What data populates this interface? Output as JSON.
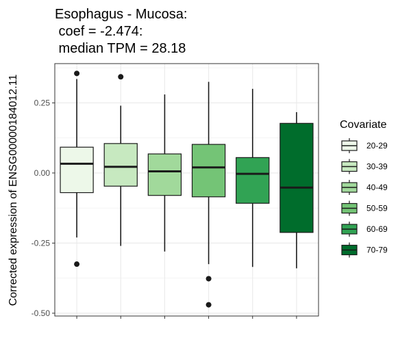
{
  "chart_data": {
    "type": "boxplot",
    "title_lines": [
      "Esophagus - Mucosa:",
      " coef = -2.474:",
      " median TPM = 28.18"
    ],
    "xlabel": "",
    "ylabel": "Corrected expression of ENSG00000184012.11",
    "ylim": [
      -0.51,
      0.39
    ],
    "yticks": [
      0.25,
      0.0,
      -0.25,
      -0.5
    ],
    "ytick_labels": [
      "0.25",
      "0.00",
      "-0.25",
      "-0.50"
    ],
    "grid": true,
    "legend": {
      "title": "Covariate",
      "position": "right"
    },
    "groups": [
      {
        "name": "20-29",
        "color": "#edf8e9",
        "whisker_low": -0.23,
        "q1": -0.07,
        "median": 0.033,
        "q3": 0.092,
        "whisker_high": 0.335,
        "outliers": [
          0.355,
          -0.325
        ]
      },
      {
        "name": "30-39",
        "color": "#c7e9c0",
        "whisker_low": -0.26,
        "q1": -0.047,
        "median": 0.022,
        "q3": 0.105,
        "whisker_high": 0.24,
        "outliers": [
          0.343
        ]
      },
      {
        "name": "40-49",
        "color": "#a1d99b",
        "whisker_low": -0.28,
        "q1": -0.08,
        "median": 0.006,
        "q3": 0.068,
        "whisker_high": 0.28,
        "outliers": []
      },
      {
        "name": "50-59",
        "color": "#74c476",
        "whisker_low": -0.325,
        "q1": -0.085,
        "median": 0.02,
        "q3": 0.102,
        "whisker_high": 0.325,
        "outliers": [
          -0.377,
          -0.47
        ]
      },
      {
        "name": "60-69",
        "color": "#31a354",
        "whisker_low": -0.335,
        "q1": -0.108,
        "median": -0.003,
        "q3": 0.055,
        "whisker_high": 0.3,
        "outliers": []
      },
      {
        "name": "70-79",
        "color": "#006d2c",
        "whisker_low": -0.34,
        "q1": -0.212,
        "median": -0.052,
        "q3": 0.177,
        "whisker_high": 0.217,
        "outliers": []
      }
    ]
  }
}
